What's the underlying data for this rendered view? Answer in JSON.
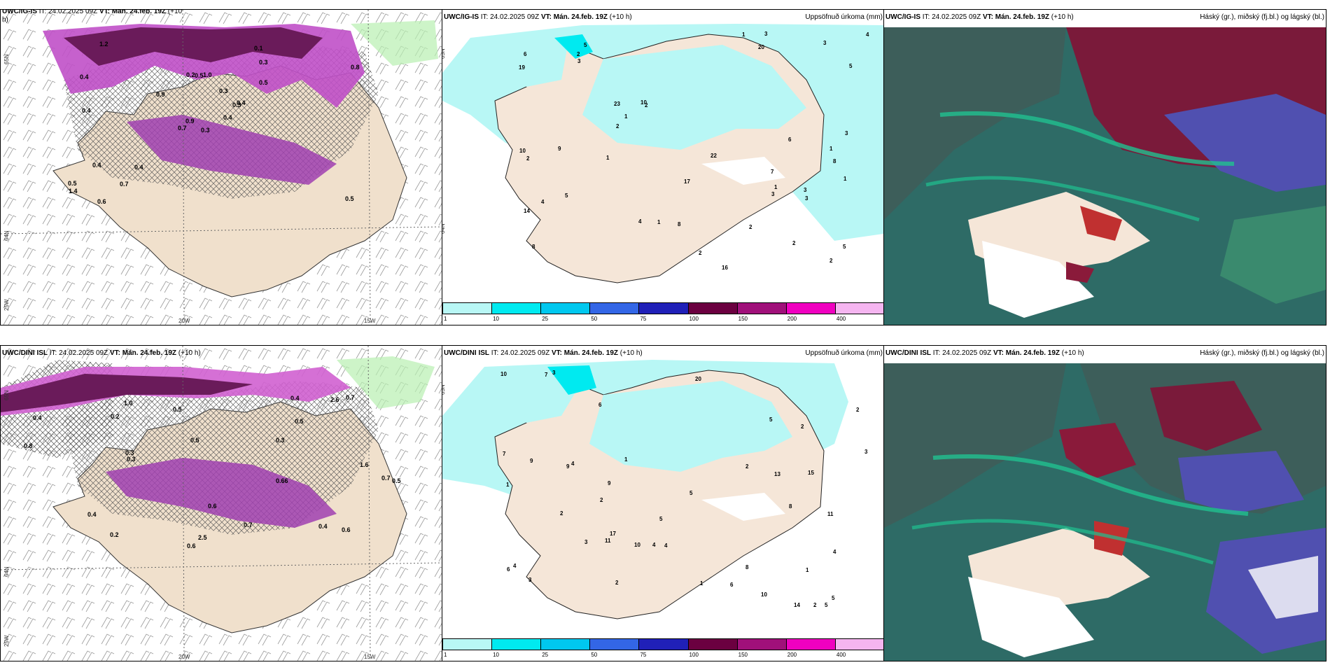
{
  "panels": {
    "tl": {
      "model": "UWC/IG-IS",
      "it": "IT: 24.02.2025 09Z",
      "vt_label": "VT:",
      "vt": "Mán. 24.feb. 19Z",
      "lead": "(+10",
      "extra": "h)"
    },
    "tm": {
      "model": "UWC/IG-IS",
      "it": "IT: 24.02.2025 09Z",
      "vt_label": "VT:",
      "vt": "Mán. 24.feb. 19Z",
      "lead": "(+10 h)",
      "right": "Uppsöfnuð úrkoma (mm)"
    },
    "tr": {
      "model": "UWC/IG-IS",
      "it": "IT: 24.02.2025 09Z",
      "vt_label": "VT:",
      "vt": "Mán. 24.feb. 19Z",
      "lead": "(+10 h)",
      "right": "Háský (gr.), miðský (fj.bl.) og lágský (bl.)"
    },
    "bl": {
      "model": "UWC/DINI ISL",
      "it": "IT: 24.02.2025 09Z",
      "vt_label": "VT:",
      "vt": "Mán. 24.feb. 19Z",
      "lead": "(+10 h)"
    },
    "bm": {
      "model": "UWC/DINI ISL",
      "it": "IT: 24.02.2025 09Z",
      "vt_label": "VT:",
      "vt": "Mán. 24.feb. 19Z",
      "lead": "(+10 h)",
      "right": "Uppsöfnuð úrkoma (mm)"
    },
    "br": {
      "model": "UWC/DINI ISL",
      "it": "IT: 24.02.2025 09Z",
      "vt_label": "VT:",
      "vt": "Mán. 24.feb. 19Z",
      "lead": "(+10 h)",
      "right": "Háský (gr.), miðský (fj.bl.) og lágský (bl.)"
    }
  },
  "axes": {
    "lat_top": "65N",
    "lat_mid": "64N",
    "lon_left": "25W",
    "lon_20": "20W",
    "lon_15": "15W"
  },
  "legend": {
    "ticks": [
      "1",
      "10",
      "25",
      "50",
      "75",
      "100",
      "150",
      "200",
      "400"
    ],
    "colors": [
      "#b8f7f5",
      "#00eaf0",
      "#00c8ef",
      "#3366e6",
      "#2020b8",
      "#6b0040",
      "#a0107a",
      "#f000c0",
      "#f5b5f0"
    ]
  },
  "numbers": {
    "tl": [
      "0.3",
      "0.4",
      "0.9",
      "0.5",
      "0.3",
      "0.4",
      "0.1",
      "1.0",
      "0.3",
      "0.4",
      "1.2",
      "0.5",
      "0.4",
      "0.8",
      "0.7",
      "0.5",
      "0.6",
      "0.2",
      "0.3",
      "0.4",
      "0.9",
      "1.4",
      "0.7",
      "0.5",
      "0.4"
    ],
    "tm": [
      "7",
      "8",
      "8",
      "5",
      "2",
      "2",
      "14",
      "20",
      "23",
      "16",
      "19",
      "10",
      "6",
      "5",
      "4",
      "3",
      "17",
      "22",
      "10",
      "5",
      "4",
      "3",
      "2",
      "1",
      "1",
      "2",
      "1",
      "2",
      "3",
      "6",
      "2",
      "2",
      "1",
      "1",
      "1",
      "3",
      "3",
      "9",
      "8",
      "4",
      "5",
      "3",
      "2",
      "1",
      "3"
    ],
    "bl": [
      "0.4",
      "0.2",
      "0.3",
      "2.5",
      "2.6",
      "0.6",
      "0.66",
      "0.3",
      "0.7",
      "0.5",
      "0.7",
      "1.0",
      "0.5",
      "0.4",
      "0.8",
      "0.2",
      "0.3",
      "0.5",
      "0.6",
      "0.7",
      "0.4",
      "1.6",
      "0.5",
      "0.6",
      "0.4"
    ],
    "bm": [
      "5",
      "9",
      "7",
      "8",
      "5",
      "6",
      "4",
      "2",
      "11",
      "13",
      "15",
      "20",
      "10",
      "14",
      "9",
      "8",
      "5",
      "3",
      "2",
      "1",
      "2",
      "4",
      "6",
      "3",
      "1",
      "2",
      "1",
      "4",
      "2",
      "6",
      "17",
      "10",
      "3",
      "4",
      "5",
      "7",
      "9",
      "3",
      "2",
      "2",
      "1",
      "5",
      "11",
      "10",
      "4"
    ]
  }
}
